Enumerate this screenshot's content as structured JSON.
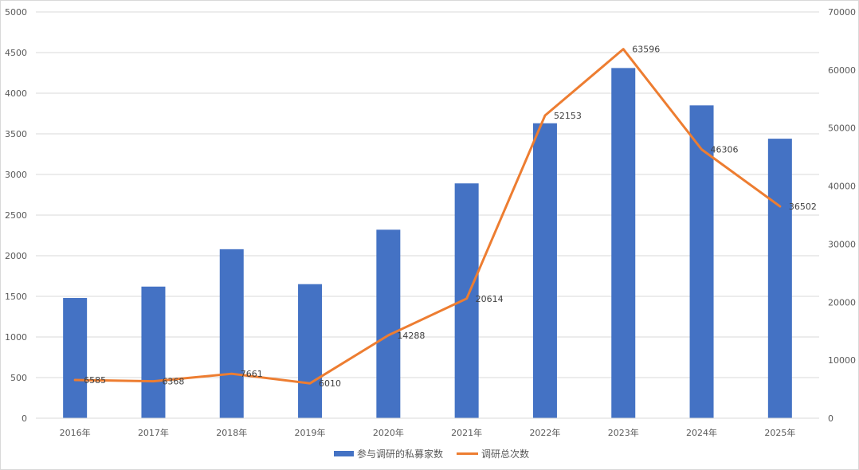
{
  "chart_data": {
    "type": "bar+line",
    "categories": [
      "2016年",
      "2017年",
      "2018年",
      "2019年",
      "2020年",
      "2021年",
      "2022年",
      "2023年",
      "2024年",
      "2025年"
    ],
    "series": [
      {
        "name": "参与调研的私募家数",
        "type": "bar",
        "axis": "left",
        "color": "#4472C4",
        "values": [
          1480,
          1620,
          2080,
          1650,
          2320,
          2890,
          3630,
          4310,
          3850,
          3440
        ]
      },
      {
        "name": "调研总次数",
        "type": "line",
        "axis": "right",
        "color": "#ED7D31",
        "values": [
          6585,
          6368,
          7661,
          6010,
          14288,
          20614,
          52153,
          63596,
          46306,
          36502
        ],
        "data_labels": [
          "6585",
          "6368",
          "7661",
          "6010",
          "14288",
          "20614",
          "52153",
          "63596",
          "46306",
          "36502"
        ]
      }
    ],
    "y_left": {
      "range": [
        0,
        5000
      ],
      "ticks": [
        "0",
        "500",
        "1000",
        "1500",
        "2000",
        "2500",
        "3000",
        "3500",
        "4000",
        "4500",
        "5000"
      ]
    },
    "y_right": {
      "range": [
        0,
        70000
      ],
      "ticks": [
        "0",
        "10000",
        "20000",
        "30000",
        "40000",
        "50000",
        "60000",
        "70000"
      ]
    },
    "title": "",
    "xlabel": "",
    "ylabel": "",
    "grid": true,
    "legend": "bottom-center"
  }
}
